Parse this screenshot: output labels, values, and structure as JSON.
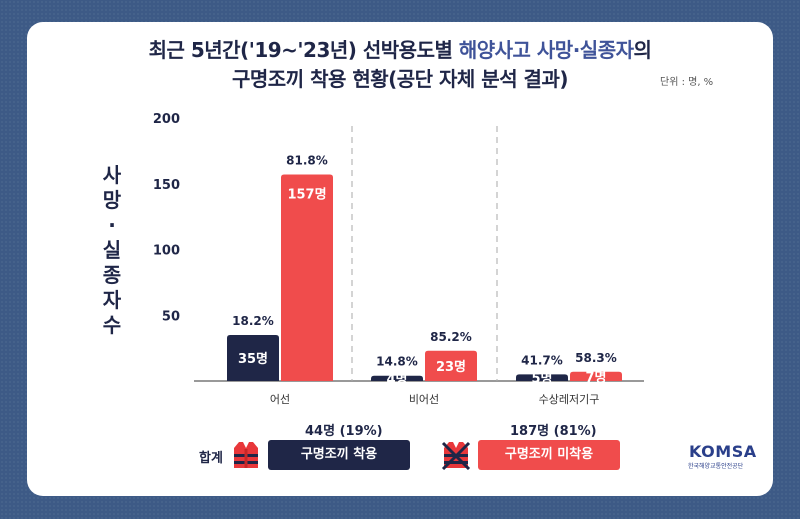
{
  "title_line1_plain": "최근 5년간('19~'23년) 선박용도별 ",
  "title_line1_highlight": "해양사고 사망·실종자",
  "title_line1_tail": "의",
  "title_line2": "구명조끼 착용 현황(공단 자체 분석 결과)",
  "unit_label": "단위 : 명, %",
  "colors": {
    "worn": "#1f2647",
    "not_worn": "#f04c4c",
    "title_highlight": "#3f5399"
  },
  "chart_data": {
    "type": "bar",
    "ylabel": "사망·실종자 수",
    "yticks": [
      50,
      100,
      150,
      200
    ],
    "ylim": [
      0,
      200
    ],
    "grid": false,
    "categories": [
      "어선",
      "비어선",
      "수상레저기구"
    ],
    "series": [
      {
        "name": "구명조끼 착용",
        "values": [
          35,
          4,
          5
        ],
        "value_labels": [
          "35명",
          "4명",
          "5명"
        ],
        "pct_labels": [
          "18.2%",
          "14.8%",
          "41.7%"
        ]
      },
      {
        "name": "구명조끼 미착용",
        "values": [
          157,
          23,
          7
        ],
        "value_labels": [
          "157명",
          "23명",
          "7명"
        ],
        "pct_labels": [
          "81.8%",
          "85.2%",
          "58.3%"
        ]
      }
    ]
  },
  "legend": {
    "total_label": "합계",
    "worn": {
      "label": "구명조끼 착용",
      "total": "44명 (19%)",
      "icon": "life-vest-icon"
    },
    "not_worn": {
      "label": "구명조끼 미착용",
      "total": "187명 (81%)",
      "icon": "life-vest-crossed-icon"
    }
  },
  "logo": {
    "name": "KOMSA",
    "subtitle": "한국해양교통안전공단"
  }
}
